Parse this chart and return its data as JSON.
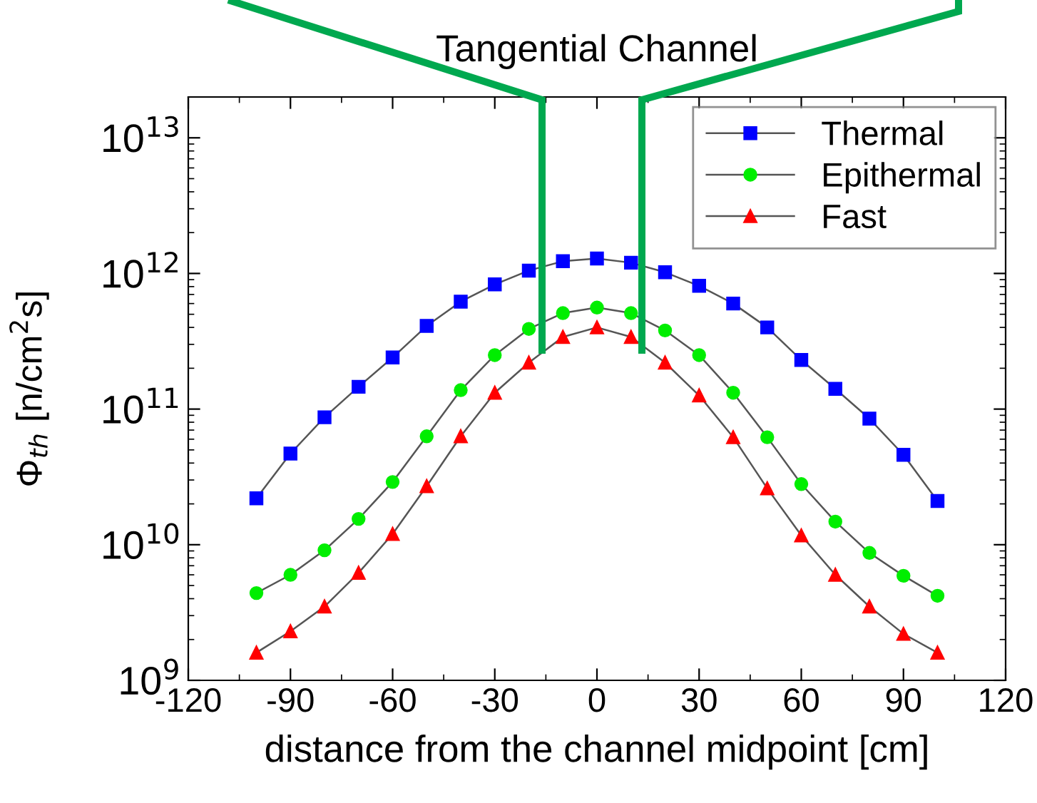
{
  "chart_data": {
    "type": "line",
    "title": "Tangential Channel",
    "xlabel": "distance from the channel midpoint [cm]",
    "ylabel": "Φ$_{th}$ [n/cm$^{2}$s]",
    "x": [
      -100,
      -90,
      -80,
      -70,
      -60,
      -50,
      -40,
      -30,
      -20,
      -10,
      0,
      10,
      20,
      30,
      40,
      50,
      60,
      70,
      80,
      90,
      100
    ],
    "series": [
      {
        "name": "Thermal",
        "color": "#0000ff",
        "marker": "square",
        "values": [
          22000000000.0,
          47000000000.0,
          87000000000.0,
          146000000000.0,
          240000000000.0,
          410000000000.0,
          620000000000.0,
          830000000000.0,
          1050000000000.0,
          1230000000000.0,
          1290000000000.0,
          1200000000000.0,
          1020000000000.0,
          810000000000.0,
          600000000000.0,
          400000000000.0,
          230000000000.0,
          141000000000.0,
          85000000000.0,
          46000000000.0,
          21000000000.0
        ]
      },
      {
        "name": "Epithermal",
        "color": "#00ee00",
        "marker": "circle",
        "values": [
          4400000000.0,
          6000000000.0,
          9100000000.0,
          15500000000.0,
          29000000000.0,
          63000000000.0,
          138000000000.0,
          250000000000.0,
          390000000000.0,
          510000000000.0,
          560000000000.0,
          510000000000.0,
          380000000000.0,
          250000000000.0,
          132000000000.0,
          62000000000.0,
          28000000000.0,
          14800000000.0,
          8700000000.0,
          5900000000.0,
          4200000000.0
        ]
      },
      {
        "name": "Fast",
        "color": "#ff0000",
        "marker": "triangle",
        "values": [
          1600000000.0,
          2300000000.0,
          3500000000.0,
          6200000000.0,
          12000000000.0,
          27000000000.0,
          63000000000.0,
          132000000000.0,
          220000000000.0,
          340000000000.0,
          400000000000.0,
          340000000000.0,
          220000000000.0,
          126000000000.0,
          62000000000.0,
          26000000000.0,
          11700000000.0,
          6000000000.0,
          3500000000.0,
          2200000000.0,
          1600000000.0
        ]
      }
    ],
    "log": "y",
    "xlim": [
      -120,
      120
    ],
    "xticks": [
      -120,
      -90,
      -60,
      -30,
      0,
      30,
      60,
      90,
      120
    ],
    "ylim": [
      1000000000.0,
      20000000000000.0
    ],
    "yticks": [
      {
        "value": 1000000000.0,
        "label": "10$^{9}$"
      },
      {
        "value": 10000000000.0,
        "label": "10$^{10}$"
      },
      {
        "value": 100000000000.0,
        "label": "10$^{11}$"
      },
      {
        "value": 1000000000000.0,
        "label": "10$^{12}$"
      },
      {
        "value": 10000000000000.0,
        "label": "10$^{13}$"
      }
    ],
    "grid": false,
    "legend": "top right",
    "line_style": "solid"
  }
}
